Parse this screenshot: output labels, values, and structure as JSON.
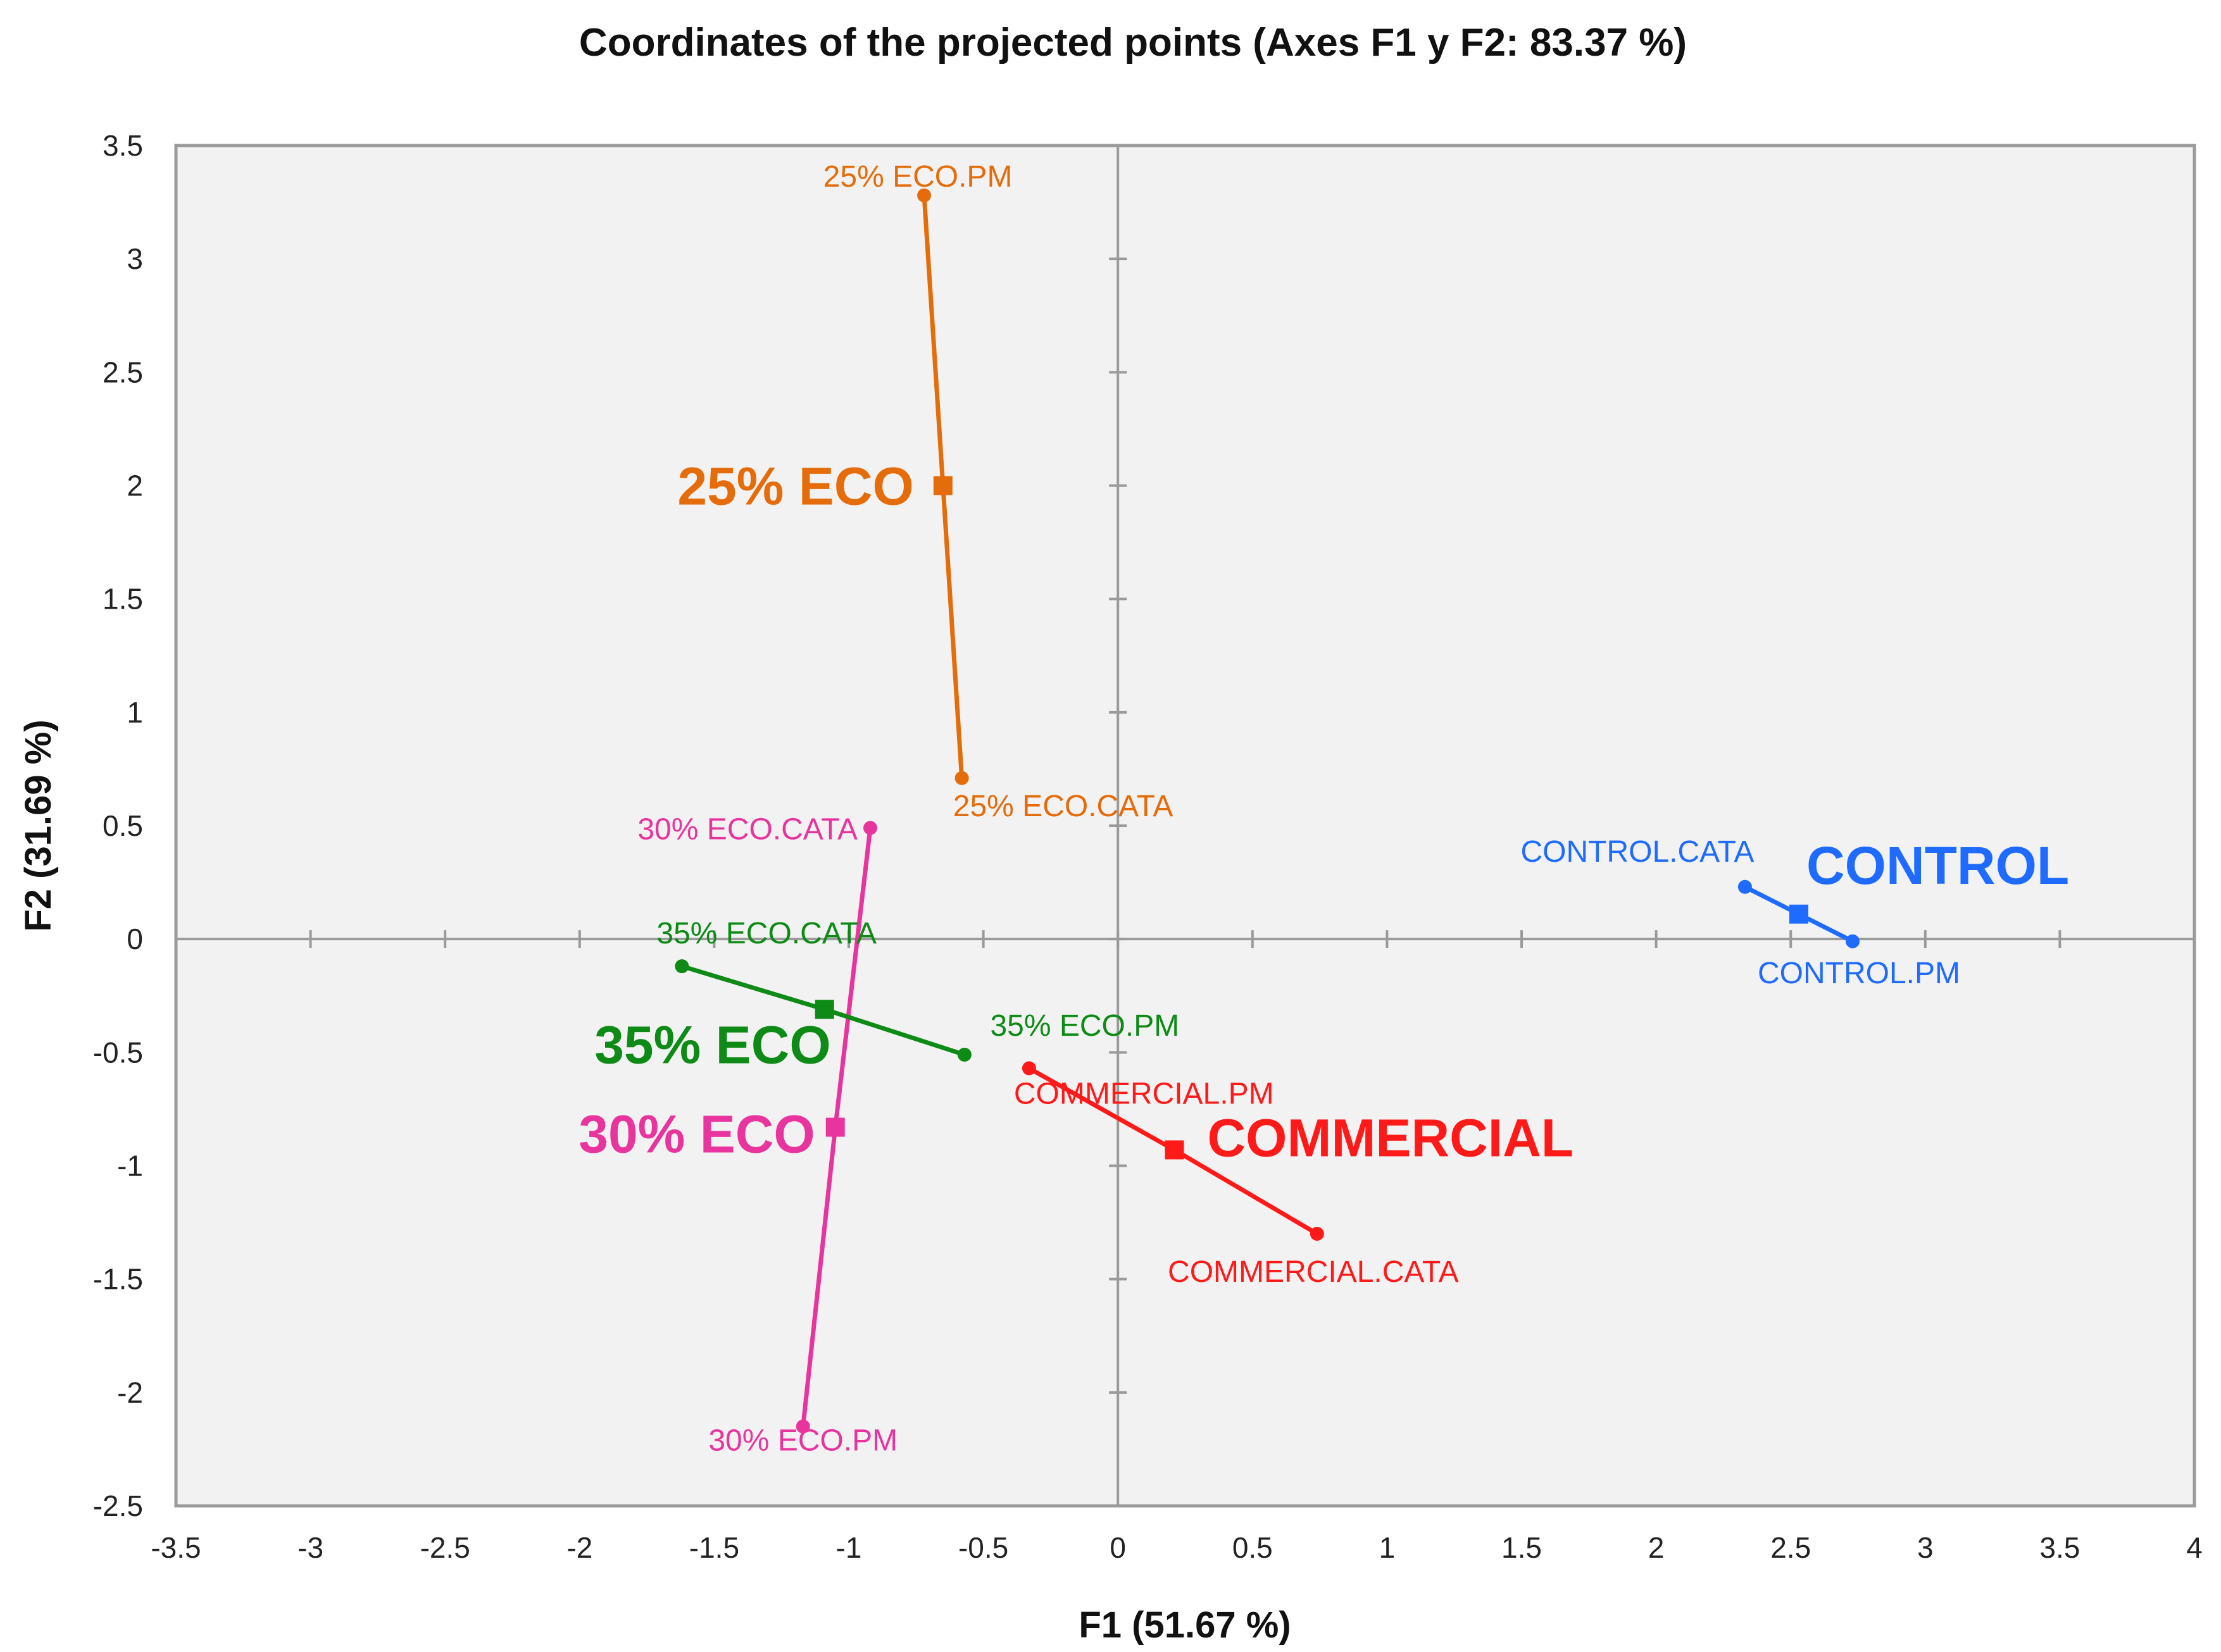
{
  "chart_data": {
    "type": "scatter",
    "title": "Coordinates of the projected points  (Axes F1 y F2: 83.37 %)",
    "xlabel": "F1 (51.67 %)",
    "ylabel": "F2 (31.69 %)",
    "xlim": [
      -3.5,
      4
    ],
    "ylim": [
      -2.5,
      3.5
    ],
    "x_ticks": [
      "-3.5",
      "-3",
      "-2.5",
      "-2",
      "-1.5",
      "-1",
      "-0.5",
      "0",
      "0.5",
      "1",
      "1.5",
      "2",
      "2.5",
      "3",
      "3.5",
      "4"
    ],
    "y_ticks": [
      "3.5",
      "3",
      "2.5",
      "2",
      "1.5",
      "1",
      "0.5",
      "0",
      "-0.5",
      "-1",
      "-1.5",
      "-2",
      "-2.5"
    ],
    "grid": false,
    "series": [
      {
        "name": "25% ECO",
        "color": "#E46C0A",
        "centroid": {
          "label": "25% ECO",
          "x": -0.65,
          "y": 2.0
        },
        "points": [
          {
            "label": "25% ECO.PM",
            "x": -0.72,
            "y": 3.28
          },
          {
            "label": "25% ECO.CATA",
            "x": -0.58,
            "y": 0.71
          }
        ]
      },
      {
        "name": "30% ECO",
        "color": "#E8359E",
        "centroid": {
          "label": "30% ECO",
          "x": -1.05,
          "y": -0.83
        },
        "points": [
          {
            "label": "30% ECO.CATA",
            "x": -0.92,
            "y": 0.49
          },
          {
            "label": "30% ECO.PM",
            "x": -1.17,
            "y": -2.15
          }
        ]
      },
      {
        "name": "35% ECO",
        "color": "#0E8A16",
        "centroid": {
          "label": "35% ECO",
          "x": -1.09,
          "y": -0.31
        },
        "points": [
          {
            "label": "35% ECO.CATA",
            "x": -1.62,
            "y": -0.12
          },
          {
            "label": "35% ECO.PM",
            "x": -0.57,
            "y": -0.51
          }
        ]
      },
      {
        "name": "COMMERCIAL",
        "color": "#FF1A1A",
        "centroid": {
          "label": "COMMERCIAL",
          "x": 0.21,
          "y": -0.93
        },
        "points": [
          {
            "label": "COMMERCIAL.PM",
            "x": -0.33,
            "y": -0.57
          },
          {
            "label": "COMMERCIAL.CATA",
            "x": 0.74,
            "y": -1.3
          }
        ]
      },
      {
        "name": "CONTROL",
        "color": "#1F6BFF",
        "centroid": {
          "label": "CONTROL",
          "x": 2.53,
          "y": 0.11
        },
        "points": [
          {
            "label": "CONTROL.CATA",
            "x": 2.33,
            "y": 0.23
          },
          {
            "label": "CONTROL.PM",
            "x": 2.73,
            "y": -0.01
          }
        ]
      }
    ]
  }
}
